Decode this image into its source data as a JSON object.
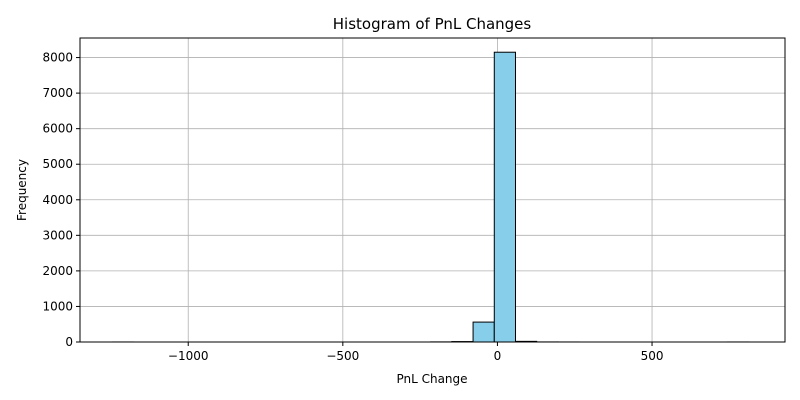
{
  "chart_data": {
    "type": "bar",
    "subtype": "histogram",
    "title": "Histogram of PnL Changes",
    "xlabel": "PnL Change",
    "ylabel": "Frequency",
    "xlim": [
      -1350,
      930
    ],
    "ylim": [
      0,
      8550
    ],
    "x_ticks": [
      -1000,
      -500,
      0,
      500
    ],
    "x_tick_labels": [
      "−1000",
      "−500",
      "0",
      "500"
    ],
    "y_ticks": [
      0,
      1000,
      2000,
      3000,
      4000,
      5000,
      6000,
      7000,
      8000
    ],
    "y_tick_labels": [
      "0",
      "1000",
      "2000",
      "3000",
      "4000",
      "5000",
      "6000",
      "7000",
      "8000"
    ],
    "grid": true,
    "bar_color": "#87ceeb",
    "edge_color": "#000000",
    "bin_edges": [
      -1245,
      -1176.4,
      -1107.8,
      -1039.2,
      -970.6,
      -902,
      -833.4,
      -764.8,
      -696.2,
      -627.6,
      -559,
      -490.4,
      -421.8,
      -353.2,
      -284.6,
      -216,
      -147.4,
      -78.8,
      -10.2,
      58.4,
      127,
      195.6,
      264.2,
      332.8,
      401.4,
      470,
      538.6,
      607.2,
      675.8,
      744.4,
      813
    ],
    "values": [
      1,
      0,
      0,
      0,
      0,
      0,
      0,
      0,
      0,
      0,
      0,
      0,
      0,
      0,
      0,
      3,
      12,
      560,
      8150,
      18,
      2,
      1,
      0,
      0,
      0,
      0,
      0,
      0,
      0,
      1
    ]
  }
}
